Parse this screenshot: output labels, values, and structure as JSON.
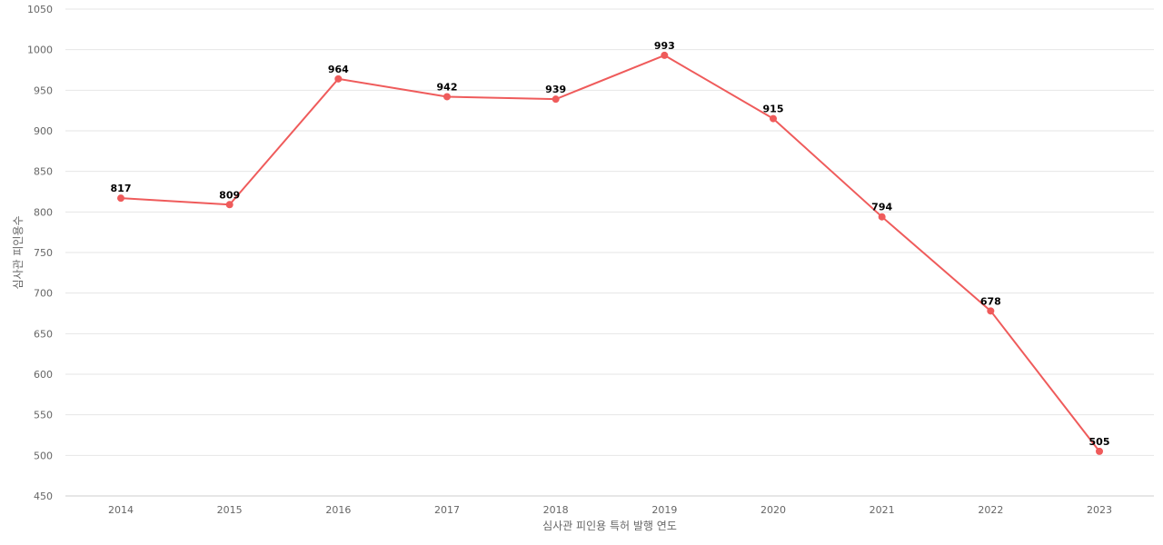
{
  "chart_data": {
    "type": "line",
    "title": "",
    "xlabel": "심사관 피인용 특허 발행 연도",
    "ylabel": "심사관 피인용수",
    "categories": [
      "2014",
      "2015",
      "2016",
      "2017",
      "2018",
      "2019",
      "2020",
      "2021",
      "2022",
      "2023"
    ],
    "series": [
      {
        "values": [
          817,
          809,
          964,
          942,
          939,
          993,
          915,
          794,
          678,
          505
        ],
        "color": "#ef5b5b"
      }
    ],
    "ylim": [
      450,
      1050
    ],
    "yticks": [
      450,
      500,
      550,
      600,
      650,
      700,
      750,
      800,
      850,
      900,
      950,
      1000,
      1050
    ],
    "grid": true,
    "legend": "none",
    "data_labels": true
  }
}
